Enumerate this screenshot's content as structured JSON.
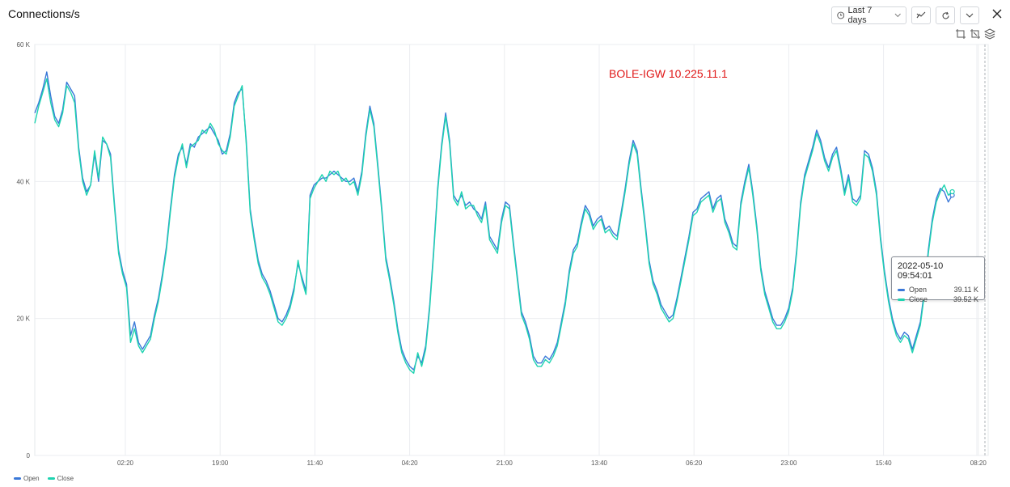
{
  "header": {
    "title": "Connections/s"
  },
  "toolbar": {
    "range_label": "Last 7 days",
    "icons": [
      "clock-icon",
      "chevron-down-icon",
      "line-style-icon",
      "refresh-icon",
      "chevron-down-icon",
      "close-icon"
    ]
  },
  "mini_tools": [
    "zoom-select-icon",
    "zoom-reset-icon",
    "layers-icon"
  ],
  "annotation": "BOLE-IGW 10.225.11.1",
  "tooltip": {
    "time": "2022-05-10 09:54:01",
    "rows": [
      {
        "name": "Open",
        "value": "39.11 K",
        "color": "#3a78d8"
      },
      {
        "name": "Close",
        "value": "39.52 K",
        "color": "#1ed3b0"
      }
    ]
  },
  "legend": [
    {
      "name": "Open",
      "color": "#3a78d8"
    },
    {
      "name": "Close",
      "color": "#1ed3b0"
    }
  ],
  "chart_data": {
    "type": "line",
    "title": "Connections/s",
    "y_ticks": [
      "0",
      "20 K",
      "40 K",
      "60 K"
    ],
    "x_ticks": [
      "02:20",
      "19:00",
      "11:40",
      "04:20",
      "21:00",
      "13:40",
      "06:20",
      "23:00",
      "15:40",
      "08:20"
    ],
    "ylim": [
      0,
      60000
    ],
    "grid": true,
    "legend_position": "bottom-left",
    "x_hours": [
      0,
      0.7,
      1.4,
      2.1,
      2.8,
      3.5,
      4.2,
      4.9,
      5.6,
      6.3,
      7.0,
      7.7,
      8.4,
      9.1,
      9.8,
      10.5,
      11.2,
      11.9,
      12.6,
      13.3,
      14.0,
      14.7,
      15.4,
      16.1,
      16.8,
      17.5,
      18.2,
      18.9,
      19.6,
      20.3,
      21.0,
      21.7,
      22.4,
      23.1,
      23.8,
      24.5,
      25.2,
      25.9,
      26.6,
      27.3,
      28.0,
      28.7,
      29.4,
      30.1,
      30.8,
      31.5,
      32.2,
      32.9,
      33.6,
      34.3,
      35.0,
      35.7,
      36.4,
      37.1,
      37.8,
      38.5,
      39.2,
      39.9,
      40.6,
      41.3,
      42.0,
      42.7,
      43.4,
      44.1,
      44.8,
      45.5,
      46.2,
      46.9,
      47.6,
      48.3,
      49.0,
      49.7,
      50.4,
      51.1,
      51.8,
      52.5,
      53.2,
      53.9,
      54.6,
      55.3,
      56.0,
      56.7,
      57.4,
      58.1,
      58.8,
      59.5,
      60.2,
      60.9,
      61.6,
      62.3,
      63.0,
      63.7,
      64.4,
      65.1,
      65.8,
      66.5,
      67.2,
      67.9,
      68.6,
      69.3,
      70.0,
      70.7,
      71.4,
      72.1,
      72.8,
      73.5,
      74.2,
      74.9,
      75.6,
      76.3,
      77.0,
      77.7,
      78.4,
      79.1,
      79.8,
      80.5,
      81.2,
      81.9,
      82.6,
      83.3,
      84.0,
      84.7,
      85.4,
      86.1,
      86.8,
      87.5,
      88.2,
      88.9,
      89.6,
      90.3,
      91.0,
      91.7,
      92.4,
      93.1,
      93.8,
      94.5,
      95.2,
      95.9,
      96.6,
      97.3,
      98.0,
      98.7,
      99.4,
      100.1,
      100.8,
      101.5,
      102.2,
      102.9,
      103.6,
      104.3,
      105.0,
      105.7,
      106.4,
      107.1,
      107.8,
      108.5,
      109.2,
      109.9,
      110.6,
      111.3,
      112.0,
      112.7,
      113.4,
      114.1,
      114.8,
      115.5,
      116.2,
      116.9,
      117.6,
      118.3,
      119.0,
      119.7,
      120.4,
      121.1,
      121.8,
      122.5,
      123.2,
      123.9,
      124.6,
      125.3,
      126.0,
      126.7,
      127.4,
      128.1,
      128.8,
      129.5,
      130.2,
      130.9,
      131.6,
      132.3,
      133.0,
      133.7,
      134.4,
      135.1,
      135.8,
      136.5,
      137.2,
      137.9,
      138.6,
      139.3,
      140.0,
      140.7,
      141.4,
      142.1,
      142.8,
      143.5,
      144.2,
      144.9,
      145.6,
      146.3,
      147.0,
      147.7,
      148.4,
      149.1,
      149.8,
      150.5,
      151.2,
      151.9,
      152.6,
      153.3,
      154.0,
      154.7,
      155.4,
      156.1,
      156.8,
      157.5,
      158.2,
      158.9,
      159.6,
      160.3,
      161.0,
      161.7,
      162.4,
      163.1,
      163.8,
      164.5,
      165.2,
      165.9,
      166.6,
      167.3
    ],
    "series": [
      {
        "name": "Open",
        "color": "#3a78d8",
        "values": [
          50000,
          51500,
          53500,
          56000,
          52500,
          49500,
          48500,
          50500,
          54500,
          53500,
          52500,
          45000,
          40500,
          38500,
          39500,
          44000,
          40000,
          46000,
          45500,
          44000,
          36500,
          30000,
          27000,
          25000,
          17500,
          19500,
          16500,
          15500,
          16500,
          17500,
          20500,
          23000,
          26500,
          30500,
          36000,
          41000,
          44000,
          45000,
          42500,
          45500,
          45000,
          46500,
          47000,
          47500,
          48000,
          47000,
          46000,
          44000,
          44500,
          47000,
          51500,
          53000,
          53500,
          46000,
          36000,
          32000,
          28500,
          26500,
          25500,
          24000,
          22000,
          20000,
          19500,
          20500,
          22000,
          24500,
          28000,
          26000,
          24000,
          38000,
          39500,
          40000,
          40500,
          40500,
          41000,
          41500,
          41000,
          40500,
          40000,
          40000,
          40500,
          38500,
          41500,
          47000,
          51000,
          48500,
          42500,
          36000,
          29000,
          26000,
          22500,
          18500,
          15500,
          14000,
          13000,
          12500,
          14500,
          13500,
          16000,
          22000,
          30000,
          39000,
          45500,
          50000,
          46000,
          38000,
          37000,
          38000,
          36500,
          37000,
          36000,
          35500,
          34500,
          37000,
          32000,
          31000,
          30000,
          34500,
          37000,
          36500,
          31000,
          26000,
          21000,
          19500,
          17500,
          14500,
          13500,
          13500,
          14500,
          14000,
          15000,
          16500,
          19500,
          22500,
          27000,
          30000,
          31000,
          34000,
          36500,
          35500,
          33500,
          34500,
          35000,
          33000,
          33500,
          32500,
          32000,
          35500,
          39000,
          43000,
          46000,
          44500,
          39000,
          34000,
          28500,
          25500,
          24000,
          22000,
          21000,
          20000,
          20500,
          23000,
          26000,
          29000,
          32000,
          35500,
          36000,
          37500,
          38000,
          38500,
          36000,
          37500,
          38000,
          34500,
          33000,
          31000,
          30500,
          37000,
          40000,
          42500,
          38500,
          33500,
          27500,
          24000,
          22000,
          20000,
          19000,
          19000,
          20000,
          21500,
          24500,
          30000,
          37000,
          41000,
          43000,
          45000,
          47500,
          46000,
          43500,
          42000,
          44000,
          45000,
          42000,
          38500,
          41000,
          37500,
          37000,
          38000,
          44500,
          44000,
          42000,
          38500,
          32000,
          27000,
          23000,
          20000,
          18000,
          17000,
          18000,
          17500,
          15500,
          17500,
          19500,
          24000,
          30000,
          34500,
          37500,
          39000,
          38500,
          37000,
          38000
        ],
        "closing_note": ""
      },
      {
        "name": "Close",
        "color": "#1ed3b0",
        "values": [
          48500,
          51000,
          53000,
          55000,
          51500,
          49000,
          48000,
          50000,
          54000,
          53000,
          51500,
          44500,
          40000,
          38000,
          39500,
          44500,
          40500,
          46500,
          45500,
          43500,
          36000,
          29500,
          26500,
          24500,
          16500,
          18500,
          16000,
          15000,
          16000,
          17000,
          20000,
          22500,
          26000,
          30000,
          35500,
          40500,
          43500,
          45500,
          42000,
          45000,
          45500,
          46000,
          47500,
          47000,
          48500,
          47500,
          45500,
          44500,
          44000,
          46500,
          51000,
          52500,
          54000,
          45500,
          35500,
          31500,
          28000,
          26000,
          25000,
          23500,
          21500,
          19500,
          19000,
          20000,
          21500,
          24000,
          28500,
          25500,
          23500,
          37500,
          39000,
          40000,
          41000,
          40000,
          41500,
          41000,
          41500,
          40000,
          40500,
          39500,
          40000,
          38000,
          41000,
          46500,
          50500,
          48000,
          42000,
          35500,
          28500,
          25500,
          22000,
          18000,
          15000,
          13500,
          12500,
          12000,
          15000,
          13000,
          15500,
          21500,
          29500,
          38500,
          45000,
          49500,
          45500,
          37500,
          36500,
          38500,
          36000,
          36500,
          36500,
          35000,
          34000,
          36500,
          31500,
          30500,
          29500,
          34000,
          36500,
          36000,
          30500,
          25500,
          20500,
          19000,
          17000,
          14000,
          13000,
          13000,
          14000,
          13500,
          14500,
          16000,
          19000,
          22000,
          26500,
          29500,
          30500,
          33500,
          36000,
          35000,
          33000,
          34000,
          34500,
          32500,
          33000,
          32000,
          31500,
          35000,
          38500,
          42500,
          45500,
          44000,
          38500,
          33500,
          28000,
          25000,
          23500,
          21500,
          20500,
          19500,
          20000,
          22500,
          25500,
          28500,
          31500,
          35000,
          35500,
          37000,
          37500,
          38000,
          35500,
          37000,
          37500,
          34000,
          32500,
          30500,
          30000,
          36500,
          39500,
          42000,
          38000,
          33000,
          27000,
          23500,
          21500,
          19500,
          18500,
          18500,
          19500,
          21000,
          24000,
          29500,
          36500,
          40500,
          42500,
          44500,
          47000,
          45500,
          43000,
          41500,
          43500,
          44500,
          41500,
          38000,
          40500,
          37000,
          36500,
          37500,
          44000,
          43500,
          41500,
          38000,
          31500,
          26500,
          22500,
          19500,
          17500,
          16500,
          17500,
          17000,
          15000,
          17000,
          19000,
          23500,
          29500,
          34000,
          37000,
          38500,
          39500,
          38000,
          38500
        ],
        "closing_note": ""
      }
    ]
  }
}
